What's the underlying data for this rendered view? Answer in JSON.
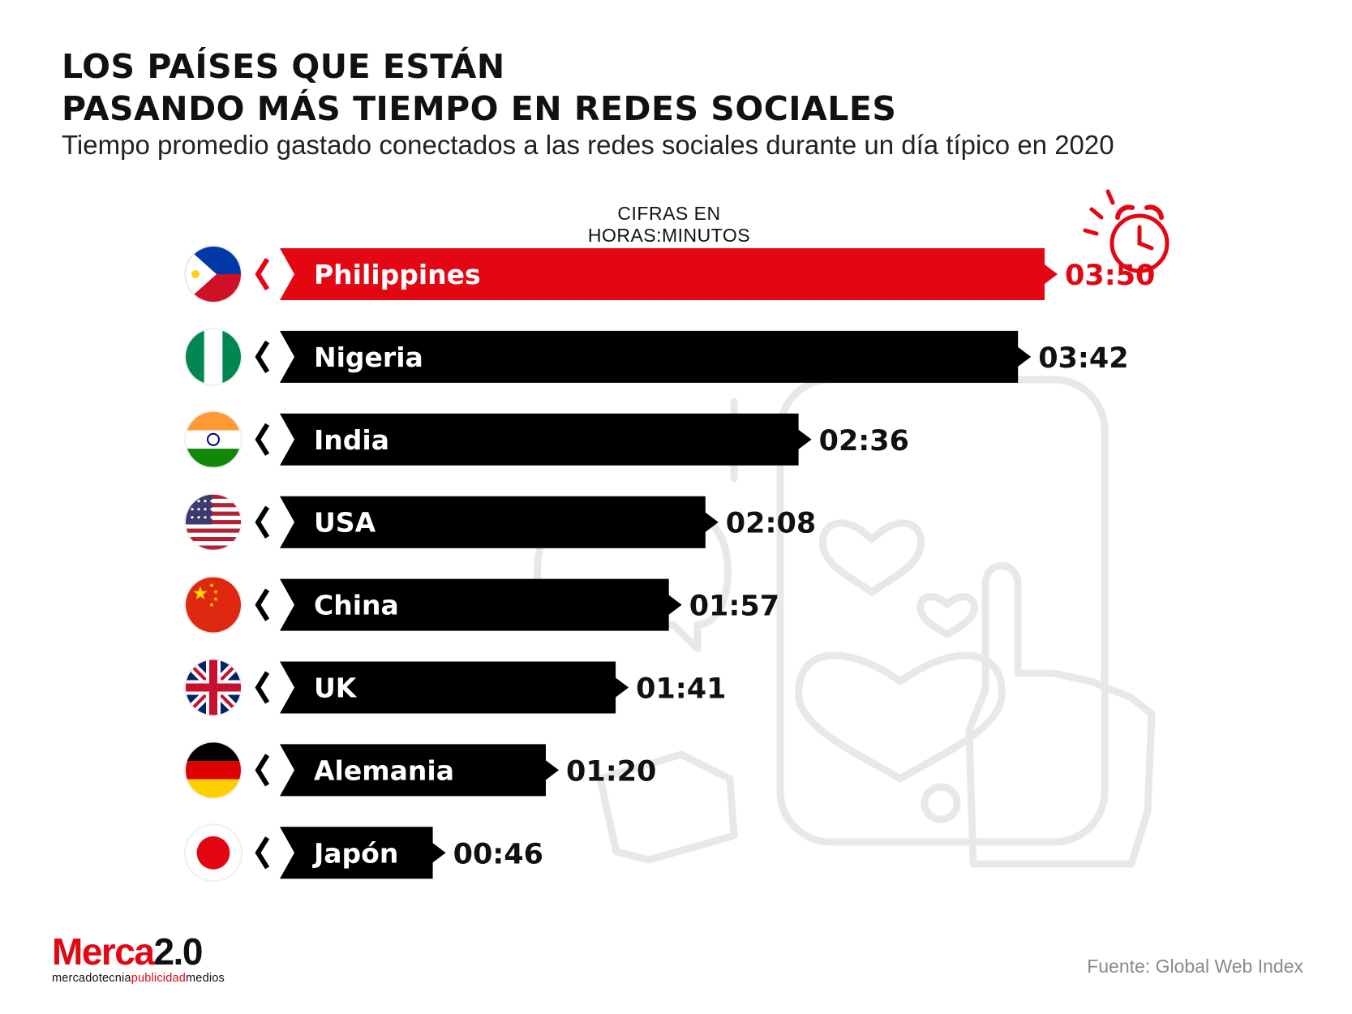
{
  "title_lines": [
    "LOS PAÍSES QUE ESTÁN",
    "PASANDO MÁS TIEMPO EN REDES SOCIALES"
  ],
  "subtitle": "Tiempo promedio gastado conectados a las redes sociales durante un día típico en 2020",
  "units_note": "CIFRAS EN HORAS:MINUTOS",
  "source": "Fuente:  Global Web Index",
  "logo": {
    "brand_red": "Merca",
    "brand_black": "2.0",
    "tagline_1": "mercadotecnia",
    "tagline_2": "publicidad",
    "tagline_3": "medios"
  },
  "colors": {
    "highlight": "#e30613",
    "bar": "#000000",
    "background_illustration": "#e8e8e8"
  },
  "chart_data": {
    "type": "bar",
    "orientation": "horizontal",
    "unit": "minutes",
    "categories": [
      "Philippines",
      "Nigeria",
      "India",
      "USA",
      "China",
      "UK",
      "Alemania",
      "Japón"
    ],
    "values": [
      230,
      222,
      156,
      128,
      117,
      101,
      80,
      46
    ],
    "value_labels": [
      "03:50",
      "03:42",
      "02:36",
      "02:08",
      "01:57",
      "01:41",
      "01:20",
      "00:46"
    ],
    "flags": [
      "flag-philippines-icon",
      "flag-nigeria-icon",
      "flag-india-icon",
      "flag-usa-icon",
      "flag-china-icon",
      "flag-uk-icon",
      "flag-germany-icon",
      "flag-japan-icon"
    ],
    "highlighted": "Philippines",
    "xlim": [
      0,
      240
    ],
    "grid": false,
    "legend": "none"
  }
}
